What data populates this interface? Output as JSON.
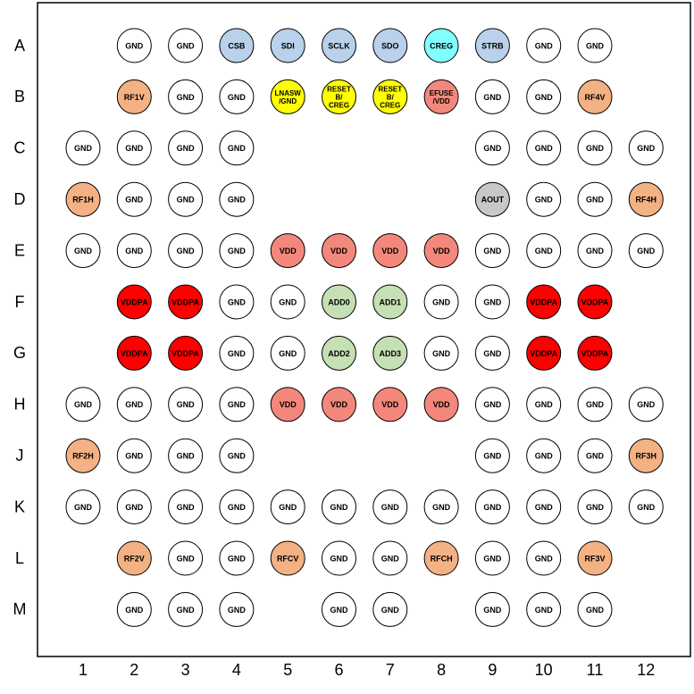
{
  "rows": [
    "A",
    "B",
    "C",
    "D",
    "E",
    "F",
    "G",
    "H",
    "J",
    "K",
    "L",
    "M"
  ],
  "columns": [
    "1",
    "2",
    "3",
    "4",
    "5",
    "6",
    "7",
    "8",
    "9",
    "10",
    "11",
    "12"
  ],
  "balls": [
    [
      null,
      {
        "label": "GND",
        "color": "#ffffff"
      },
      {
        "label": "GND",
        "color": "#ffffff"
      },
      {
        "label": "CSB",
        "color": "#b9d1ea"
      },
      {
        "label": "SDI",
        "color": "#b9d1ea"
      },
      {
        "label": "SCLK",
        "color": "#b9d1ea"
      },
      {
        "label": "SDO",
        "color": "#b9d1ea"
      },
      {
        "label": "CREG",
        "color": "#80ffff"
      },
      {
        "label": "STRB",
        "color": "#b9d1ea"
      },
      {
        "label": "GND",
        "color": "#ffffff"
      },
      {
        "label": "GND",
        "color": "#ffffff"
      },
      null
    ],
    [
      null,
      {
        "label": "RF1V",
        "color": "#f4b183"
      },
      {
        "label": "GND",
        "color": "#ffffff"
      },
      {
        "label": "GND",
        "color": "#ffffff"
      },
      {
        "label": [
          "LNASW",
          "/GND"
        ],
        "color": "#ffff00"
      },
      {
        "label": [
          "RESET",
          "B/",
          "CREG"
        ],
        "color": "#ffff00"
      },
      {
        "label": [
          "RESET",
          "B/",
          "CREG"
        ],
        "color": "#ffff00"
      },
      {
        "label": [
          "EFUSE",
          "/VDD"
        ],
        "color": "#f4877b"
      },
      {
        "label": "GND",
        "color": "#ffffff"
      },
      {
        "label": "GND",
        "color": "#ffffff"
      },
      {
        "label": "RF4V",
        "color": "#f4b183"
      },
      null
    ],
    [
      {
        "label": "GND",
        "color": "#ffffff"
      },
      {
        "label": "GND",
        "color": "#ffffff"
      },
      {
        "label": "GND",
        "color": "#ffffff"
      },
      {
        "label": "GND",
        "color": "#ffffff"
      },
      null,
      null,
      null,
      null,
      {
        "label": "GND",
        "color": "#ffffff"
      },
      {
        "label": "GND",
        "color": "#ffffff"
      },
      {
        "label": "GND",
        "color": "#ffffff"
      },
      {
        "label": "GND",
        "color": "#ffffff"
      }
    ],
    [
      {
        "label": "RF1H",
        "color": "#f4b183"
      },
      {
        "label": "GND",
        "color": "#ffffff"
      },
      {
        "label": "GND",
        "color": "#ffffff"
      },
      {
        "label": "GND",
        "color": "#ffffff"
      },
      null,
      null,
      null,
      null,
      {
        "label": "AOUT",
        "color": "#c8c8c8"
      },
      {
        "label": "GND",
        "color": "#ffffff"
      },
      {
        "label": "GND",
        "color": "#ffffff"
      },
      {
        "label": "RF4H",
        "color": "#f4b183"
      }
    ],
    [
      {
        "label": "GND",
        "color": "#ffffff"
      },
      {
        "label": "GND",
        "color": "#ffffff"
      },
      {
        "label": "GND",
        "color": "#ffffff"
      },
      {
        "label": "GND",
        "color": "#ffffff"
      },
      {
        "label": "VDD",
        "color": "#f4877b"
      },
      {
        "label": "VDD",
        "color": "#f4877b"
      },
      {
        "label": "VDD",
        "color": "#f4877b"
      },
      {
        "label": "VDD",
        "color": "#f4877b"
      },
      {
        "label": "GND",
        "color": "#ffffff"
      },
      {
        "label": "GND",
        "color": "#ffffff"
      },
      {
        "label": "GND",
        "color": "#ffffff"
      },
      {
        "label": "GND",
        "color": "#ffffff"
      }
    ],
    [
      null,
      {
        "label": "VDDPA",
        "color": "#ff0000"
      },
      {
        "label": "VDDPA",
        "color": "#ff0000"
      },
      {
        "label": "GND",
        "color": "#ffffff"
      },
      {
        "label": "GND",
        "color": "#ffffff"
      },
      {
        "label": "ADD0",
        "color": "#c5e0b4"
      },
      {
        "label": "ADD1",
        "color": "#c5e0b4"
      },
      {
        "label": "GND",
        "color": "#ffffff"
      },
      {
        "label": "GND",
        "color": "#ffffff"
      },
      {
        "label": "VDDPA",
        "color": "#ff0000"
      },
      {
        "label": "VDDPA",
        "color": "#ff0000"
      },
      null
    ],
    [
      null,
      {
        "label": "VDDPA",
        "color": "#ff0000"
      },
      {
        "label": "VDDPA",
        "color": "#ff0000"
      },
      {
        "label": "GND",
        "color": "#ffffff"
      },
      {
        "label": "GND",
        "color": "#ffffff"
      },
      {
        "label": "ADD2",
        "color": "#c5e0b4"
      },
      {
        "label": "ADD3",
        "color": "#c5e0b4"
      },
      {
        "label": "GND",
        "color": "#ffffff"
      },
      {
        "label": "GND",
        "color": "#ffffff"
      },
      {
        "label": "VDDPA",
        "color": "#ff0000"
      },
      {
        "label": "VDDPA",
        "color": "#ff0000"
      },
      null
    ],
    [
      {
        "label": "GND",
        "color": "#ffffff"
      },
      {
        "label": "GND",
        "color": "#ffffff"
      },
      {
        "label": "GND",
        "color": "#ffffff"
      },
      {
        "label": "GND",
        "color": "#ffffff"
      },
      {
        "label": "VDD",
        "color": "#f4877b"
      },
      {
        "label": "VDD",
        "color": "#f4877b"
      },
      {
        "label": "VDD",
        "color": "#f4877b"
      },
      {
        "label": "VDD",
        "color": "#f4877b"
      },
      {
        "label": "GND",
        "color": "#ffffff"
      },
      {
        "label": "GND",
        "color": "#ffffff"
      },
      {
        "label": "GND",
        "color": "#ffffff"
      },
      {
        "label": "GND",
        "color": "#ffffff"
      }
    ],
    [
      {
        "label": "RF2H",
        "color": "#f4b183"
      },
      {
        "label": "GND",
        "color": "#ffffff"
      },
      {
        "label": "GND",
        "color": "#ffffff"
      },
      {
        "label": "GND",
        "color": "#ffffff"
      },
      null,
      null,
      null,
      null,
      {
        "label": "GND",
        "color": "#ffffff"
      },
      {
        "label": "GND",
        "color": "#ffffff"
      },
      {
        "label": "GND",
        "color": "#ffffff"
      },
      {
        "label": "RF3H",
        "color": "#f4b183"
      }
    ],
    [
      {
        "label": "GND",
        "color": "#ffffff"
      },
      {
        "label": "GND",
        "color": "#ffffff"
      },
      {
        "label": "GND",
        "color": "#ffffff"
      },
      {
        "label": "GND",
        "color": "#ffffff"
      },
      {
        "label": "GND",
        "color": "#ffffff"
      },
      {
        "label": "GND",
        "color": "#ffffff"
      },
      {
        "label": "GND",
        "color": "#ffffff"
      },
      {
        "label": "GND",
        "color": "#ffffff"
      },
      {
        "label": "GND",
        "color": "#ffffff"
      },
      {
        "label": "GND",
        "color": "#ffffff"
      },
      {
        "label": "GND",
        "color": "#ffffff"
      },
      {
        "label": "GND",
        "color": "#ffffff"
      }
    ],
    [
      null,
      {
        "label": "RF2V",
        "color": "#f4b183"
      },
      {
        "label": "GND",
        "color": "#ffffff"
      },
      {
        "label": "GND",
        "color": "#ffffff"
      },
      {
        "label": "RFCV",
        "color": "#f4b183"
      },
      {
        "label": "GND",
        "color": "#ffffff"
      },
      {
        "label": "GND",
        "color": "#ffffff"
      },
      {
        "label": "RFCH",
        "color": "#f4b183"
      },
      {
        "label": "GND",
        "color": "#ffffff"
      },
      {
        "label": "GND",
        "color": "#ffffff"
      },
      {
        "label": "RF3V",
        "color": "#f4b183"
      },
      null
    ],
    [
      null,
      {
        "label": "GND",
        "color": "#ffffff"
      },
      {
        "label": "GND",
        "color": "#ffffff"
      },
      {
        "label": "GND",
        "color": "#ffffff"
      },
      null,
      {
        "label": "GND",
        "color": "#ffffff"
      },
      {
        "label": "GND",
        "color": "#ffffff"
      },
      null,
      {
        "label": "GND",
        "color": "#ffffff"
      },
      {
        "label": "GND",
        "color": "#ffffff"
      },
      {
        "label": "GND",
        "color": "#ffffff"
      },
      null
    ]
  ]
}
